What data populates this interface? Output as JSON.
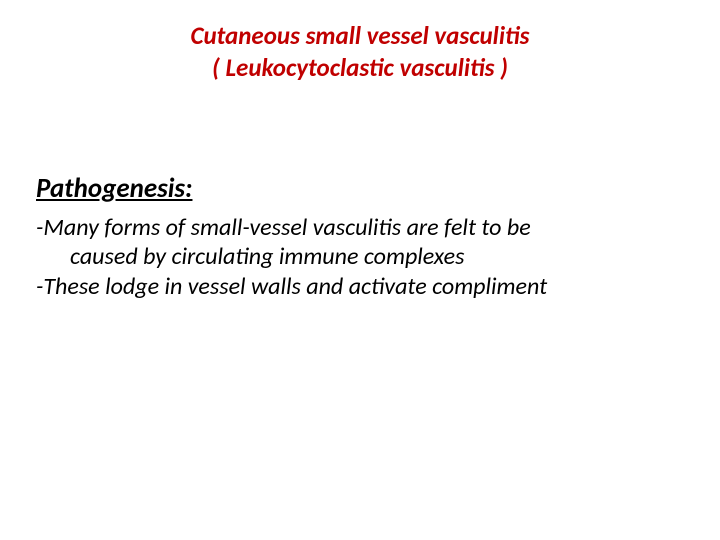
{
  "title": {
    "line1": "Cutaneous small vessel vasculitis",
    "line2": "( Leukocytoclastic vasculitis )",
    "color": "#c00000",
    "fontsize": 25,
    "font_style": "bold italic"
  },
  "section": {
    "heading": "Pathogenesis:",
    "heading_color": "#000000",
    "heading_fontsize": 27,
    "body_color": "#000000",
    "body_fontsize": 24,
    "lines": {
      "l1": "-Many forms of small-vessel vasculitis are felt to be",
      "l2": "caused by circulating immune complexes",
      "l3": "-These lodge in vessel walls and activate compliment"
    }
  },
  "background_color": "#ffffff"
}
